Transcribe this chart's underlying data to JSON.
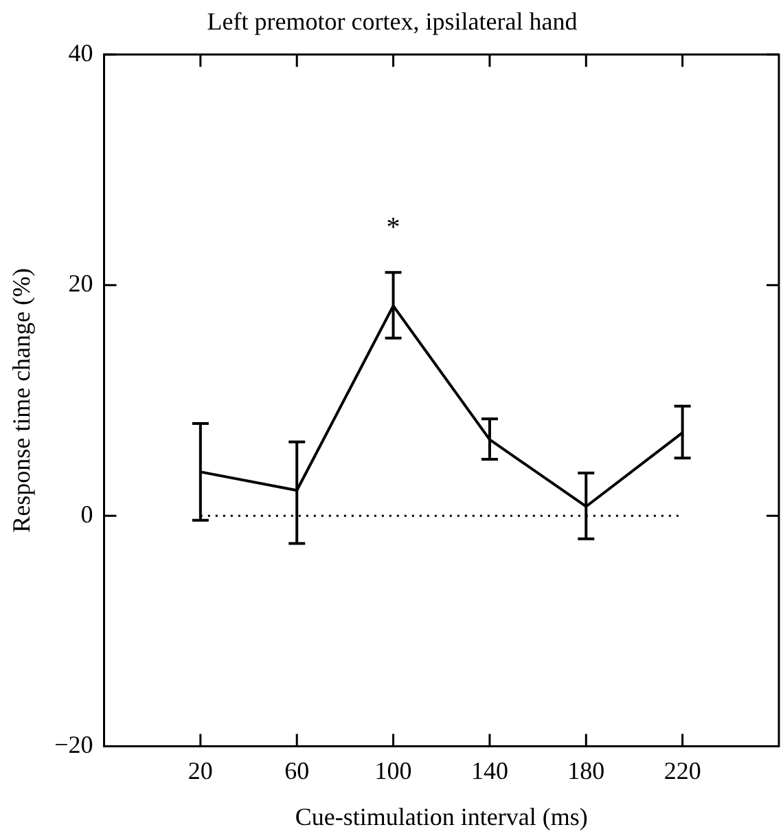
{
  "chart_data": {
    "type": "line",
    "title": "Left premotor cortex, ipsilateral hand",
    "xlabel": "Cue-stimulation interval (ms)",
    "ylabel": "Response time change (%)",
    "x": [
      20,
      60,
      100,
      140,
      180,
      220
    ],
    "values": [
      3.8,
      2.2,
      18.2,
      6.6,
      0.8,
      7.2
    ],
    "errors": [
      [
        -0.4,
        8.0
      ],
      [
        -2.4,
        6.4
      ],
      [
        15.4,
        21.1
      ],
      [
        4.9,
        8.4
      ],
      [
        -2.0,
        3.7
      ],
      [
        5.0,
        9.5
      ]
    ],
    "color": "#000000",
    "marker": "none",
    "line_style": "solid",
    "grid": false,
    "legend": false,
    "xlim": [
      -20,
      260
    ],
    "xticks": [
      20,
      60,
      100,
      140,
      180,
      220
    ],
    "ylim": [
      -20,
      40
    ],
    "yticks": [
      -20,
      0,
      20,
      40
    ],
    "ref_lines": [
      {
        "axis": "y",
        "value": 0,
        "line_style": "dotted"
      }
    ],
    "annotations": [
      "*"
    ]
  }
}
